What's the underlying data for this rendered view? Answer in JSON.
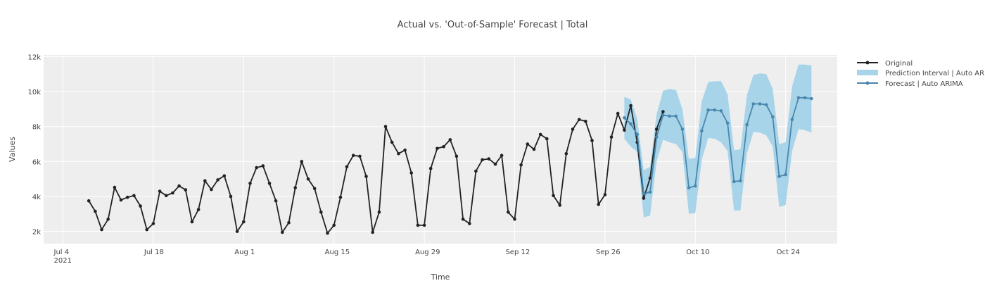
{
  "chart_data": {
    "type": "line",
    "title": "Actual vs. 'Out-of-Sample' Forecast | Total",
    "xlabel": "Time",
    "ylabel": "Values",
    "x_tick_labels": [
      {
        "date": "2021-07-04",
        "label": "Jul 4",
        "sub": "2021"
      },
      {
        "date": "2021-07-18",
        "label": "Jul 18"
      },
      {
        "date": "2021-08-01",
        "label": "Aug 1"
      },
      {
        "date": "2021-08-15",
        "label": "Aug 15"
      },
      {
        "date": "2021-08-29",
        "label": "Aug 29"
      },
      {
        "date": "2021-09-12",
        "label": "Sep 12"
      },
      {
        "date": "2021-09-26",
        "label": "Sep 26"
      },
      {
        "date": "2021-10-10",
        "label": "Oct 10"
      },
      {
        "date": "2021-10-24",
        "label": "Oct 24"
      }
    ],
    "y_ticks": [
      {
        "value": 2000,
        "label": "2k"
      },
      {
        "value": 4000,
        "label": "4k"
      },
      {
        "value": 6000,
        "label": "6k"
      },
      {
        "value": 8000,
        "label": "8k"
      },
      {
        "value": 10000,
        "label": "10k"
      },
      {
        "value": 12000,
        "label": "12k"
      }
    ],
    "xlim": [
      "2021-07-01",
      "2021-11-01"
    ],
    "ylim": [
      1300,
      12100
    ],
    "grid": true,
    "legend_position": "right",
    "colors": {
      "original": "#222222",
      "interval": "#a8d4ea",
      "forecast": "#4a87ac",
      "plot_bg": "#eeeeee",
      "grid": "#ffffff"
    },
    "series": [
      {
        "name": "Original",
        "start_date": "2021-07-08",
        "values": [
          3750,
          3150,
          2100,
          2700,
          4520,
          3800,
          3950,
          4050,
          3450,
          2100,
          2450,
          4300,
          4050,
          4200,
          4600,
          4380,
          2550,
          3250,
          4900,
          4400,
          4950,
          5180,
          4000,
          2000,
          2550,
          4750,
          5650,
          5750,
          4750,
          3750,
          1950,
          2500,
          4500,
          6000,
          5000,
          4450,
          3100,
          1900,
          2350,
          3950,
          5700,
          6350,
          6300,
          5150,
          1950,
          3100,
          8000,
          7100,
          6450,
          6650,
          5350,
          2350,
          2350,
          5600,
          6750,
          6850,
          7250,
          6300,
          2700,
          2450,
          5450,
          6100,
          6150,
          5850,
          6350,
          3100,
          2700,
          5800,
          7000,
          6700,
          7550,
          7300,
          4050,
          3500,
          6450,
          7850,
          8400,
          8300,
          7200,
          3550,
          4100,
          7400,
          8750,
          7800,
          9200,
          7100,
          3900,
          5050,
          7850,
          8850
        ]
      },
      {
        "name": "Prediction Interval | Auto ARIMA",
        "start_date": "2021-09-29",
        "upper": [
          9700,
          9550,
          8450,
          5500,
          5700,
          8700,
          10050,
          10150,
          10100,
          9000,
          6150,
          6200,
          9450,
          10550,
          10600,
          10600,
          9850,
          6650,
          6700,
          9800,
          10950,
          11050,
          11000,
          10150,
          7000,
          7100,
          10300,
          11550,
          11550,
          11500
        ],
        "lower": [
          7300,
          6850,
          6550,
          2800,
          2900,
          6000,
          7250,
          7100,
          7000,
          6550,
          3000,
          3050,
          6100,
          7350,
          7300,
          7100,
          6600,
          3200,
          3200,
          6450,
          7700,
          7650,
          7500,
          6850,
          3400,
          3500,
          6600,
          7850,
          7800,
          7650
        ]
      },
      {
        "name": "Forecast | Auto ARIMA",
        "start_date": "2021-09-29",
        "values": [
          8500,
          8150,
          7550,
          4150,
          4250,
          7400,
          8650,
          8600,
          8600,
          7850,
          4500,
          4600,
          7750,
          8950,
          8950,
          8900,
          8200,
          4850,
          4900,
          8100,
          9300,
          9300,
          9250,
          8550,
          5150,
          5250,
          8400,
          9650,
          9650,
          9600
        ]
      }
    ]
  }
}
